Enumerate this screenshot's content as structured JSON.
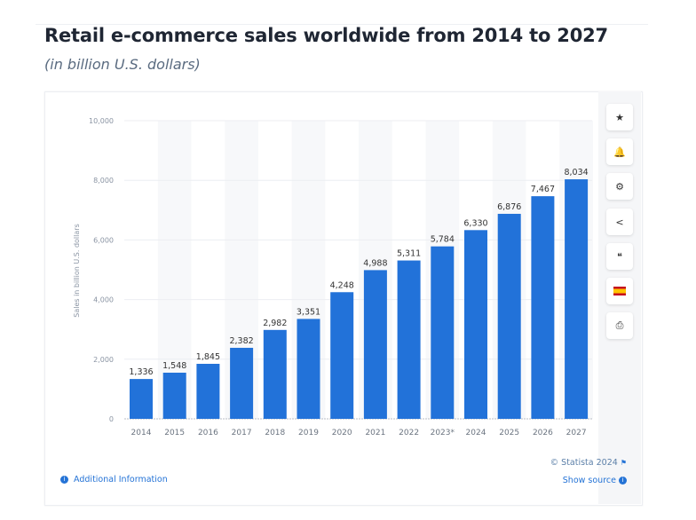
{
  "header": {
    "title": "Retail e-commerce sales worldwide from 2014 to 2027",
    "subtitle": "(in billion U.S. dollars)"
  },
  "sidebar": {
    "buttons": [
      {
        "name": "star-icon",
        "glyph": "★"
      },
      {
        "name": "bell-icon",
        "glyph": "🔔"
      },
      {
        "name": "gear-icon",
        "glyph": "⚙"
      },
      {
        "name": "share-icon",
        "glyph": "<"
      },
      {
        "name": "quote-icon",
        "glyph": "❝"
      },
      {
        "name": "spain-flag-icon",
        "glyph": ""
      },
      {
        "name": "print-icon",
        "glyph": "⎙"
      }
    ]
  },
  "footer": {
    "additional_info": "Additional Information",
    "copyright": "© Statista 2024",
    "show_source": "Show source"
  },
  "colors": {
    "bar": "#2272d9",
    "accent": "#2473d6"
  },
  "chart_data": {
    "type": "bar",
    "title": "",
    "xlabel": "",
    "ylabel": "Sales in billion U.S. dollars",
    "ylim": [
      0,
      10000
    ],
    "yticks": [
      "0",
      "2,000",
      "4,000",
      "6,000",
      "8,000",
      "10,000"
    ],
    "ytick_values": [
      0,
      2000,
      4000,
      6000,
      8000,
      10000
    ],
    "grid": true,
    "categories": [
      "2014",
      "2015",
      "2016",
      "2017",
      "2018",
      "2019",
      "2020",
      "2021",
      "2022",
      "2023*",
      "2024",
      "2025",
      "2026",
      "2027"
    ],
    "values": [
      1336,
      1548,
      1845,
      2382,
      2982,
      3351,
      4248,
      4988,
      5311,
      5784,
      6330,
      6876,
      7467,
      8034
    ],
    "labels": [
      "1,336",
      "1,548",
      "1,845",
      "2,382",
      "2,982",
      "3,351",
      "4,248",
      "4,988",
      "5,311",
      "5,784",
      "6,330",
      "6,876",
      "7,467",
      "8,034"
    ]
  }
}
